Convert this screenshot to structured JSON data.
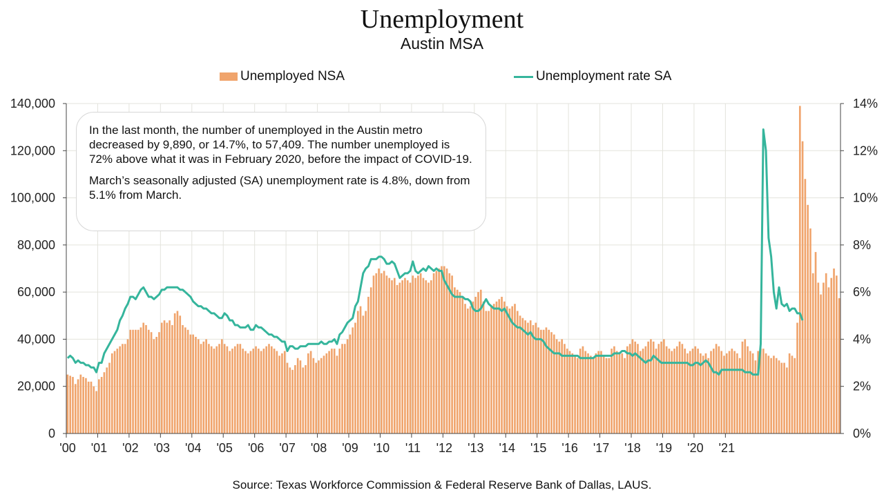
{
  "header": {
    "title": "Unemployment",
    "subtitle": "Austin MSA"
  },
  "legend": {
    "bars_label": "Unemployed NSA",
    "line_label": "Unemployment rate SA"
  },
  "annotation": {
    "paragraph1": "In the last month, the number of unemployed in the Austin metro decreased by 9,890, or 14.7%, to 57,409. The number unemployed is 72% above what it was in February 2020, before the impact of COVID-19.",
    "paragraph2": "March’s seasonally adjusted (SA) unemployment rate is 4.8%, down from 5.1% from March."
  },
  "source": "Source: Texas Workforce Commission & Federal Reserve Bank of Dallas, LAUS.",
  "colors": {
    "bars": "#f0a46c",
    "line": "#35b59c",
    "grid": "#e3e3dc",
    "axis": "#444444"
  },
  "chart_data": {
    "type": "bar+line",
    "x_range": [
      "2000-01",
      "2021-03"
    ],
    "x_tick_labels": [
      "'00",
      "'01",
      "'02",
      "'03",
      "'04",
      "'05",
      "'06",
      "'07",
      "'08",
      "'09",
      "'10",
      "'11",
      "'12",
      "'13",
      "'14",
      "'15",
      "'16",
      "'17",
      "'18",
      "'19",
      "'20",
      "'21"
    ],
    "y_left": {
      "ylim": [
        0,
        140000
      ],
      "ticks": [
        "0",
        "20,000",
        "40,000",
        "60,000",
        "80,000",
        "100,000",
        "120,000",
        "140,000"
      ]
    },
    "y_right": {
      "ylim": [
        0,
        14
      ],
      "ticks": [
        "0%",
        "2%",
        "4%",
        "6%",
        "8%",
        "10%",
        "12%",
        "14%"
      ]
    },
    "series": [
      {
        "name": "Unemployed NSA",
        "kind": "bar",
        "axis": "left",
        "values": [
          25000,
          24500,
          24000,
          21000,
          23000,
          25000,
          24000,
          23500,
          22000,
          22000,
          20000,
          18000,
          23000,
          24000,
          26000,
          28000,
          30000,
          34000,
          35000,
          36000,
          37000,
          38000,
          38000,
          40000,
          44000,
          44000,
          44000,
          44000,
          45000,
          47000,
          46000,
          44000,
          43000,
          40000,
          41000,
          43000,
          47000,
          48000,
          47000,
          48000,
          46000,
          51000,
          52000,
          50000,
          46000,
          45000,
          44000,
          42000,
          42000,
          41000,
          40000,
          38000,
          39000,
          40000,
          38000,
          37000,
          36000,
          37000,
          38000,
          40000,
          38000,
          37000,
          35000,
          36000,
          37000,
          38000,
          38000,
          36000,
          35000,
          34000,
          35000,
          36000,
          37000,
          36000,
          35000,
          36000,
          37000,
          38000,
          37000,
          36000,
          35000,
          33000,
          34000,
          35000,
          30000,
          28000,
          27000,
          29000,
          32000,
          31000,
          28000,
          29000,
          34000,
          35000,
          32000,
          30000,
          31000,
          32000,
          33000,
          34000,
          35000,
          36000,
          36000,
          33000,
          36000,
          38000,
          38000,
          40000,
          42000,
          45000,
          47000,
          52000,
          54000,
          50000,
          52000,
          58000,
          62000,
          67000,
          68000,
          70000,
          68000,
          69000,
          67000,
          66000,
          65000,
          66000,
          63000,
          64000,
          65000,
          66000,
          65000,
          64000,
          67000,
          66000,
          67000,
          68000,
          66000,
          65000,
          64000,
          65000,
          68000,
          69000,
          70000,
          71000,
          71000,
          70000,
          68000,
          67000,
          62000,
          61000,
          60000,
          58000,
          55000,
          53000,
          54000,
          56000,
          58000,
          60000,
          61000,
          56000,
          52000,
          52000,
          54000,
          55000,
          56000,
          57000,
          58000,
          56000,
          54000,
          53000,
          54000,
          55000,
          52000,
          50000,
          49000,
          48000,
          47000,
          48000,
          46000,
          47000,
          45000,
          44000,
          44000,
          45000,
          44000,
          43000,
          42000,
          40000,
          39000,
          40000,
          38000,
          36000,
          35000,
          34000,
          33000,
          32000,
          36000,
          37000,
          35000,
          34000,
          33000,
          32000,
          34000,
          35000,
          35000,
          33000,
          32000,
          32000,
          36000,
          37000,
          35000,
          34000,
          34000,
          32000,
          37000,
          38000,
          40000,
          39000,
          38000,
          35000,
          36000,
          37000,
          39000,
          40000,
          39000,
          36000,
          38000,
          39000,
          40000,
          37000,
          36000,
          35000,
          36000,
          37000,
          39000,
          38000,
          36000,
          34000,
          35000,
          36000,
          37000,
          36000,
          34000,
          33000,
          34000,
          32000,
          35000,
          36000,
          38000,
          37000,
          35000,
          33000,
          34000,
          35000,
          36000,
          35000,
          34000,
          32000,
          39000,
          40000,
          37000,
          35000,
          34000,
          31000,
          35000,
          36000,
          36000,
          34000,
          33000,
          32000,
          33000,
          32000,
          31000,
          30000,
          30000,
          28000,
          34000,
          33000,
          32000,
          47000,
          139000,
          124000,
          108000,
          97000,
          87000,
          68000,
          77000,
          64000,
          59000,
          64000,
          68000,
          62000,
          66000,
          70000,
          67000,
          57409
        ]
      },
      {
        "name": "Unemployment rate SA",
        "kind": "line",
        "axis": "right",
        "values": [
          3.2,
          3.3,
          3.2,
          3.0,
          3.1,
          3.0,
          3.0,
          2.9,
          2.9,
          2.8,
          2.8,
          2.6,
          3.0,
          3.0,
          3.4,
          3.6,
          3.8,
          4.0,
          4.2,
          4.4,
          4.8,
          5.0,
          5.3,
          5.5,
          5.8,
          5.8,
          5.7,
          5.9,
          6.1,
          6.2,
          6.0,
          5.8,
          5.8,
          5.7,
          5.8,
          5.9,
          6.1,
          6.1,
          6.2,
          6.2,
          6.2,
          6.2,
          6.2,
          6.1,
          6.1,
          6.0,
          5.9,
          5.8,
          5.6,
          5.5,
          5.4,
          5.4,
          5.3,
          5.3,
          5.2,
          5.1,
          5.1,
          5.0,
          4.9,
          4.9,
          5.1,
          5.0,
          4.8,
          4.8,
          4.6,
          4.6,
          4.5,
          4.5,
          4.5,
          4.6,
          4.4,
          4.4,
          4.6,
          4.5,
          4.5,
          4.4,
          4.3,
          4.2,
          4.2,
          4.1,
          4.1,
          4.0,
          3.9,
          3.9,
          3.5,
          3.7,
          3.7,
          3.6,
          3.6,
          3.7,
          3.7,
          3.7,
          3.8,
          3.8,
          3.8,
          3.8,
          3.8,
          3.9,
          3.8,
          3.8,
          3.9,
          3.9,
          4.0,
          3.8,
          4.2,
          4.3,
          4.5,
          4.7,
          4.8,
          4.9,
          5.4,
          5.6,
          6.2,
          6.8,
          7.0,
          7.1,
          7.4,
          7.4,
          7.4,
          7.5,
          7.5,
          7.4,
          7.2,
          7.2,
          7.3,
          7.2,
          6.9,
          6.6,
          6.7,
          6.8,
          6.8,
          6.9,
          7.3,
          6.9,
          6.8,
          6.9,
          7.0,
          6.9,
          7.1,
          7.0,
          6.9,
          7.0,
          6.9,
          6.9,
          6.5,
          6.3,
          6.1,
          5.9,
          5.8,
          5.8,
          5.8,
          5.8,
          5.7,
          5.7,
          5.6,
          5.3,
          5.2,
          5.2,
          5.3,
          5.5,
          5.7,
          5.5,
          5.4,
          5.3,
          5.3,
          5.3,
          5.2,
          5.3,
          5.1,
          4.9,
          4.7,
          4.6,
          4.5,
          4.5,
          4.4,
          4.3,
          4.2,
          4.3,
          4.1,
          4.0,
          4.0,
          4.0,
          3.9,
          3.7,
          3.6,
          3.5,
          3.4,
          3.4,
          3.4,
          3.3,
          3.3,
          3.3,
          3.3,
          3.3,
          3.3,
          3.3,
          3.2,
          3.2,
          3.2,
          3.2,
          3.2,
          3.2,
          3.3,
          3.3,
          3.3,
          3.3,
          3.3,
          3.3,
          3.3,
          3.4,
          3.4,
          3.4,
          3.5,
          3.5,
          3.4,
          3.4,
          3.3,
          3.4,
          3.3,
          3.2,
          3.1,
          3.0,
          3.1,
          3.1,
          3.3,
          3.2,
          3.1,
          3.0,
          3.0,
          3.0,
          3.0,
          3.0,
          3.0,
          3.0,
          3.0,
          3.0,
          3.0,
          3.0,
          2.9,
          2.9,
          3.0,
          3.0,
          2.9,
          3.0,
          3.1,
          3.0,
          2.8,
          2.6,
          2.6,
          2.5,
          2.7,
          2.7,
          2.7,
          2.7,
          2.7,
          2.7,
          2.7,
          2.7,
          2.7,
          2.6,
          2.6,
          2.6,
          2.5,
          2.5,
          2.5,
          3.8,
          12.9,
          12.0,
          8.3,
          7.5,
          6.0,
          5.3,
          6.2,
          5.5,
          5.4,
          5.5,
          5.2,
          5.3,
          5.3,
          5.1,
          5.1,
          4.8
        ]
      }
    ]
  }
}
